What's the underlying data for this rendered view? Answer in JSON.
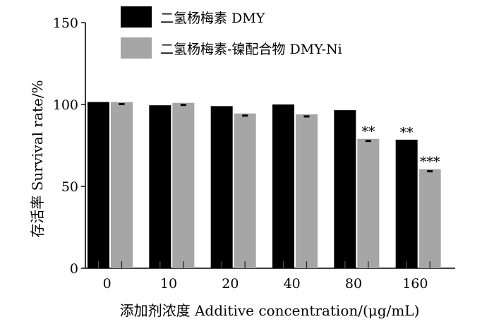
{
  "chart_data": {
    "type": "bar",
    "xlabel": "添加剂浓度 Additive concentration/(μg/mL)",
    "ylabel": "存活率 Survival rate/%",
    "categories": [
      "0",
      "10",
      "20",
      "40",
      "80",
      "160"
    ],
    "ylim": [
      0,
      150
    ],
    "yticks": [
      0,
      50,
      100,
      150
    ],
    "legend_position": "top",
    "series": [
      {
        "name": "二氢杨梅素 DMY",
        "color": "#000000",
        "values": [
          101.5,
          99.5,
          99,
          100,
          96.5,
          78.5
        ],
        "errors": [
          0.5,
          0.5,
          0.5,
          0.5,
          0.5,
          0.5
        ],
        "significance": [
          "",
          "",
          "",
          "",
          "",
          "**"
        ]
      },
      {
        "name": "二氢杨梅素-镍配合物 DMY-Ni",
        "color": "#a6a6a6",
        "values": [
          101.5,
          101,
          94.5,
          94,
          79,
          60.5
        ],
        "errors": [
          0.5,
          0.5,
          0.5,
          0.5,
          0.5,
          0.5
        ],
        "significance": [
          "",
          "",
          "",
          "",
          "**",
          "***"
        ]
      }
    ]
  }
}
